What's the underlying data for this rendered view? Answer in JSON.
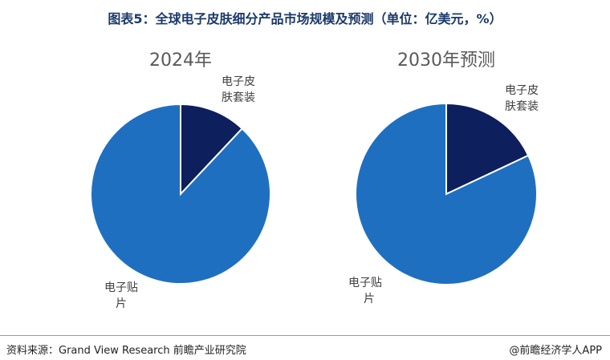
{
  "title": "图表5：全球电子皮肤细分产品市场规模及预测（单位：亿美元，%）",
  "footer": {
    "source": "资料来源：Grand View Research 前瞻产业研究院",
    "brand": "@前瞻经济学人APP"
  },
  "colors": {
    "patch": "#1f6fc1",
    "skin_suit": "#0d1f5c",
    "title": "#1b3a6b"
  },
  "chart_data": [
    {
      "type": "pie",
      "title": "2024年",
      "categories": [
        "电子皮肤套装",
        "电子贴片"
      ],
      "label_lines": [
        [
          "电子皮",
          "肤套装"
        ],
        [
          "电子贴",
          "片"
        ]
      ],
      "values": [
        12,
        88
      ],
      "start": "12 o'clock",
      "direction": "clockwise",
      "legend": "none"
    },
    {
      "type": "pie",
      "title": "2030年预测",
      "categories": [
        "电子皮肤套装",
        "电子贴片"
      ],
      "label_lines": [
        [
          "电子皮",
          "肤套装"
        ],
        [
          "电子贴",
          "片"
        ]
      ],
      "values": [
        18,
        82
      ],
      "start": "12 o'clock",
      "direction": "clockwise",
      "legend": "none"
    }
  ]
}
